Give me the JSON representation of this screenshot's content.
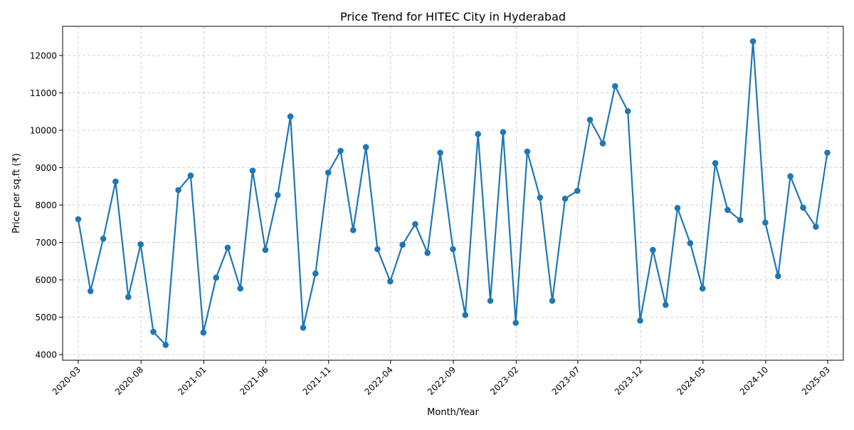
{
  "chart_data": {
    "type": "line",
    "title": "Price Trend for HITEC City in Hyderabad",
    "xlabel": "Month/Year",
    "ylabel": "Price per sq.ft (₹)",
    "grid": true,
    "legend": "none",
    "line_color": "#1f77b4",
    "xlim": [
      "2020-01-23",
      "2025-04-08"
    ],
    "ylim": [
      3850,
      12780
    ],
    "x_ticks": [
      "2020-03",
      "2020-08",
      "2021-01",
      "2021-06",
      "2021-11",
      "2022-04",
      "2022-09",
      "2023-02",
      "2023-07",
      "2023-12",
      "2024-05",
      "2024-10",
      "2025-03"
    ],
    "y_ticks": [
      4000,
      5000,
      6000,
      7000,
      8000,
      9000,
      10000,
      11000,
      12000
    ],
    "x": [
      "2020-03-01",
      "2020-03-31",
      "2020-05-01",
      "2020-05-31",
      "2020-07-01",
      "2020-07-31",
      "2020-08-31",
      "2020-09-30",
      "2020-10-31",
      "2020-11-30",
      "2020-12-31",
      "2021-01-31",
      "2021-02-28",
      "2021-03-31",
      "2021-04-30",
      "2021-05-31",
      "2021-06-30",
      "2021-07-31",
      "2021-08-31",
      "2021-09-30",
      "2021-10-31",
      "2021-11-30",
      "2021-12-31",
      "2022-01-31",
      "2022-02-28",
      "2022-03-31",
      "2022-04-30",
      "2022-05-31",
      "2022-06-30",
      "2022-07-31",
      "2022-08-31",
      "2022-09-30",
      "2022-10-31",
      "2022-11-30",
      "2022-12-31",
      "2023-01-31",
      "2023-02-28",
      "2023-03-31",
      "2023-04-30",
      "2023-05-31",
      "2023-06-30",
      "2023-07-31",
      "2023-08-31",
      "2023-09-30",
      "2023-10-31",
      "2023-11-30",
      "2023-12-31",
      "2024-01-31",
      "2024-02-29",
      "2024-03-31",
      "2024-04-30",
      "2024-05-31",
      "2024-06-30",
      "2024-07-31",
      "2024-08-31",
      "2024-09-30",
      "2024-10-31",
      "2024-11-30",
      "2024-12-31",
      "2025-01-31",
      "2025-02-28"
    ],
    "values": [
      7620,
      5700,
      7100,
      8630,
      5540,
      6950,
      4610,
      4260,
      8400,
      8790,
      4590,
      6060,
      6860,
      5770,
      8920,
      6800,
      8270,
      10370,
      4720,
      6170,
      8870,
      9450,
      7330,
      9550,
      6820,
      5960,
      6940,
      7490,
      6720,
      9400,
      6820,
      5060,
      9900,
      5440,
      9950,
      4850,
      9430,
      8200,
      5440,
      8170,
      8380,
      10280,
      9650,
      11180,
      10510,
      4910,
      6800,
      5330,
      7920,
      6980,
      5770,
      9120,
      7870,
      7600,
      12380,
      7530,
      6100,
      8770,
      7930,
      7420,
      9400
    ]
  }
}
